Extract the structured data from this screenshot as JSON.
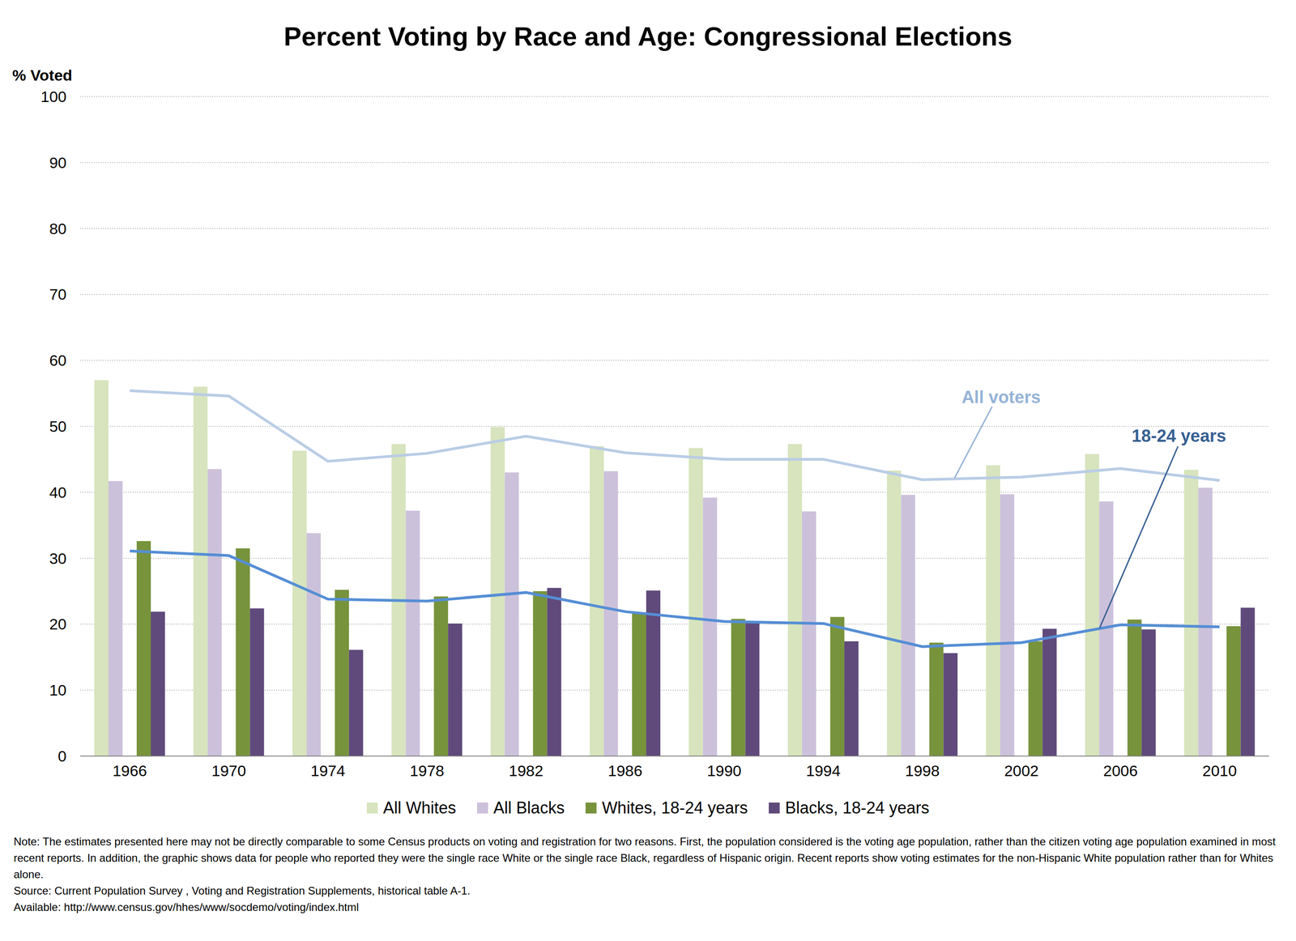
{
  "chart_data": {
    "type": "bar",
    "title": "Percent Voting by Race and Age:  Congressional Elections",
    "y_label": "% Voted",
    "categories": [
      "1966",
      "1970",
      "1974",
      "1978",
      "1982",
      "1986",
      "1990",
      "1994",
      "1998",
      "2002",
      "2006",
      "2010"
    ],
    "series": [
      {
        "name": "All Whites",
        "type": "bar",
        "color": "#d7e4bd",
        "values": [
          57,
          56,
          46.3,
          47.3,
          49.9,
          47,
          46.7,
          47.3,
          43.3,
          44.1,
          45.8,
          43.4
        ]
      },
      {
        "name": "All Blacks",
        "type": "bar",
        "color": "#ccc1da",
        "values": [
          41.7,
          43.5,
          33.8,
          37.2,
          43,
          43.2,
          39.2,
          37.1,
          39.6,
          39.7,
          38.6,
          40.7
        ]
      },
      {
        "name": "Whites, 18-24 years",
        "type": "bar",
        "color": "#77933c",
        "values": [
          32.6,
          31.5,
          25.2,
          24.2,
          25,
          21.8,
          20.8,
          21.1,
          17.2,
          17.4,
          20.7,
          19.7
        ]
      },
      {
        "name": "Blacks, 18-24 years",
        "type": "bar",
        "color": "#604a7b",
        "values": [
          21.9,
          22.4,
          16.1,
          20.1,
          25.5,
          25.1,
          20.2,
          17.4,
          15.6,
          19.3,
          19.2,
          22.5
        ]
      },
      {
        "name": "All voters",
        "type": "line",
        "color": "#b9cde5",
        "values": [
          55.4,
          54.6,
          44.7,
          45.9,
          48.5,
          46,
          45,
          45,
          41.9,
          42.3,
          43.6,
          41.8
        ]
      },
      {
        "name": "18-24 years",
        "type": "line",
        "color": "#558ed5",
        "values": [
          31.1,
          30.4,
          23.8,
          23.5,
          24.8,
          21.9,
          20.4,
          20.1,
          16.6,
          17.2,
          19.9,
          19.6
        ]
      }
    ],
    "ylim": [
      0,
      100
    ],
    "yticks": [
      0,
      10,
      20,
      30,
      40,
      50,
      60,
      70,
      80,
      90,
      100
    ],
    "grid": true,
    "legend": "bottom",
    "note": "Note: The estimates presented here may not be directly comparable to some Census products on voting and registration for two reasons. First, the population considered is the voting age population, rather than the citizen voting age population examined in most recent reports. In addition, the graphic shows data for people who reported they were the single race White or the single race Black, regardless of Hispanic origin. Recent reports show voting estimates for the non-Hispanic White population rather than for Whites alone.",
    "source": "Source: Current Population Survey , Voting and  Registration Supplements, historical table A-1.",
    "available": "Available: http://www.census.gov/hhes/www/socdemo/voting/index.html"
  }
}
